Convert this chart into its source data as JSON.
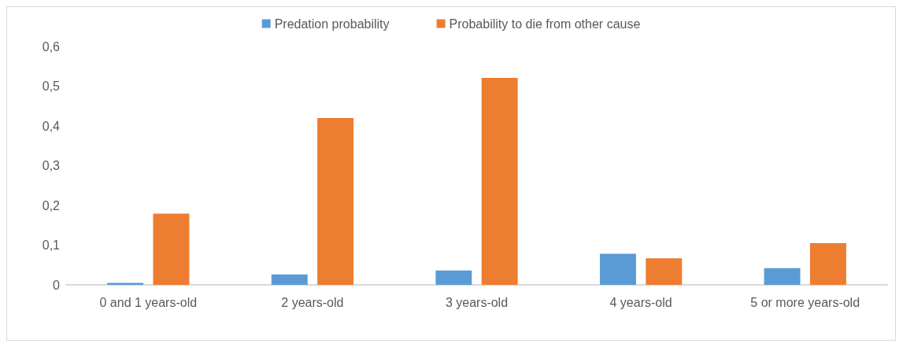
{
  "chart_data": {
    "type": "bar",
    "categories": [
      "0 and 1 years-old",
      "2 years-old",
      "3 years-old",
      "4 years-old",
      "5 or more years-old"
    ],
    "series": [
      {
        "name": "Predation probability",
        "color": "#5b9bd5",
        "values": [
          0.005,
          0.026,
          0.036,
          0.078,
          0.042
        ]
      },
      {
        "name": "Probability to die from other cause",
        "color": "#ed7d31",
        "values": [
          0.179,
          0.42,
          0.521,
          0.067,
          0.105
        ]
      }
    ],
    "ylim": [
      0,
      0.6
    ],
    "yticks": [
      {
        "value": 0,
        "label": "0"
      },
      {
        "value": 0.1,
        "label": "0,1"
      },
      {
        "value": 0.2,
        "label": "0,2"
      },
      {
        "value": 0.3,
        "label": "0,3"
      },
      {
        "value": 0.4,
        "label": "0,4"
      },
      {
        "value": 0.5,
        "label": "0,5"
      },
      {
        "value": 0.6,
        "label": "0,6"
      }
    ],
    "grid": false,
    "legend": "top"
  }
}
